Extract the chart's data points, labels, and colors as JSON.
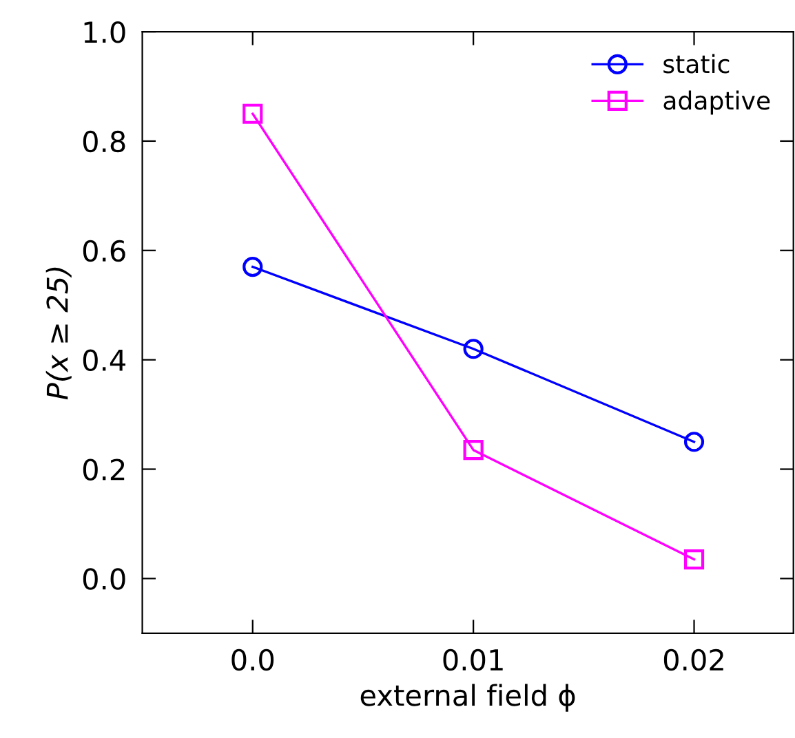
{
  "chart_data": {
    "type": "line",
    "xlabel": "external field ϕ",
    "ylabel": "P(x ≥ 25)",
    "x": [
      0.0,
      0.01,
      0.02
    ],
    "series": [
      {
        "name": "static",
        "color": "#0000ff",
        "values": [
          0.57,
          0.42,
          0.25
        ],
        "marker": "circle"
      },
      {
        "name": "adaptive",
        "color": "#ff00ff",
        "values": [
          0.85,
          0.235,
          0.035
        ],
        "marker": "square"
      }
    ],
    "xlim": [
      -0.005,
      0.0245
    ],
    "xticks": [
      {
        "value": 0.0,
        "label": "0.0"
      },
      0.01,
      0.02
    ],
    "ylim": [
      -0.1,
      1.0
    ],
    "yticks": [
      {
        "value": 0.0,
        "label": "0.0"
      },
      0.2,
      0.4,
      0.6,
      0.8,
      {
        "value": 1.0,
        "label": "1.0"
      }
    ],
    "grid": false,
    "legend": "top right",
    "line_style": "solid"
  }
}
